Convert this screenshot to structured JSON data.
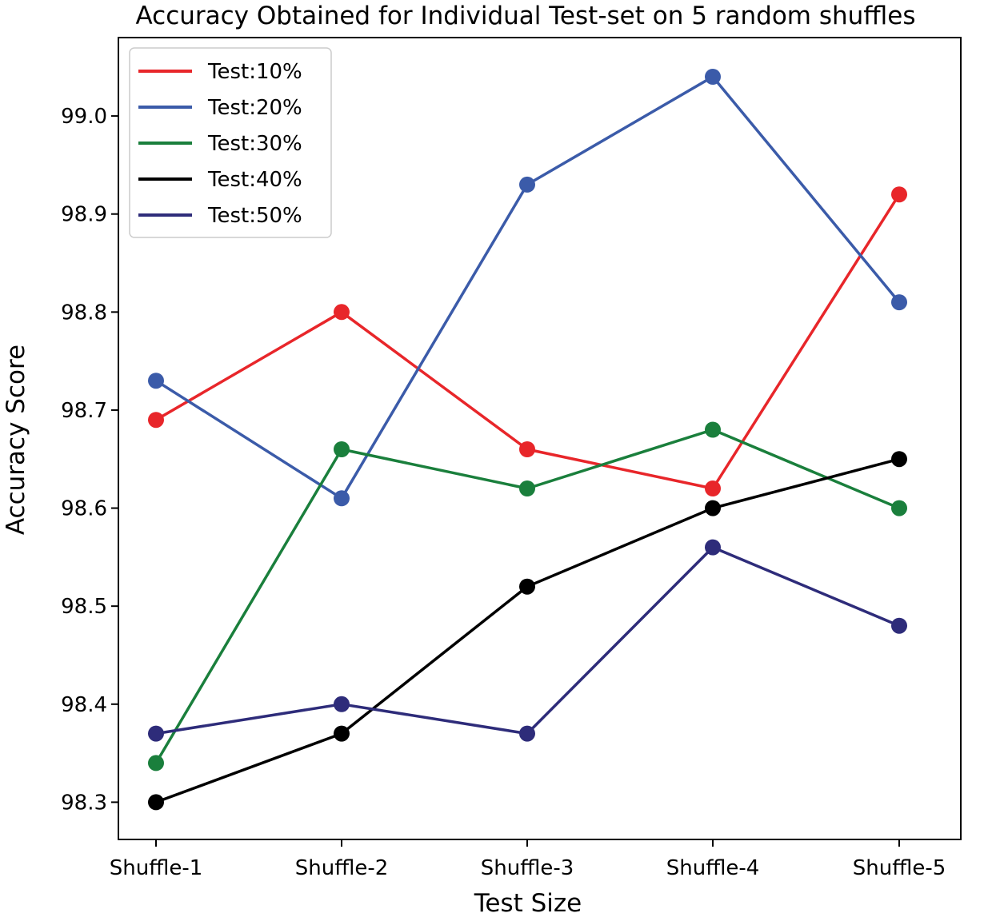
{
  "chart_data": {
    "type": "line",
    "title": "Accuracy Obtained for Individual Test-set on 5 random shuffles",
    "xlabel": "Test Size",
    "ylabel": "Accuracy Score",
    "categories": [
      "Shuffle-1",
      "Shuffle-2",
      "Shuffle-3",
      "Shuffle-4",
      "Shuffle-5"
    ],
    "ylim": [
      98.262,
      99.08
    ],
    "yticks": [
      98.3,
      98.4,
      98.5,
      98.6,
      98.7,
      98.8,
      98.9,
      99.0
    ],
    "ytick_labels": [
      "98.3",
      "98.4",
      "98.5",
      "98.6",
      "98.7",
      "98.8",
      "98.9",
      "99.0"
    ],
    "grid": false,
    "legend_position": "top-left",
    "series": [
      {
        "name": "Test:10%",
        "color": "#e8262a",
        "values": [
          98.69,
          98.8,
          98.66,
          98.62,
          98.92
        ]
      },
      {
        "name": "Test:20%",
        "color": "#3b5ba9",
        "values": [
          98.73,
          98.61,
          98.93,
          99.04,
          98.81
        ]
      },
      {
        "name": "Test:30%",
        "color": "#1a7f3c",
        "values": [
          98.34,
          98.66,
          98.62,
          98.68,
          98.6
        ]
      },
      {
        "name": "Test:40%",
        "color": "#000000",
        "values": [
          98.3,
          98.37,
          98.52,
          98.6,
          98.65
        ]
      },
      {
        "name": "Test:50%",
        "color": "#2e2c7a",
        "values": [
          98.37,
          98.4,
          98.37,
          98.56,
          98.48
        ]
      }
    ]
  }
}
